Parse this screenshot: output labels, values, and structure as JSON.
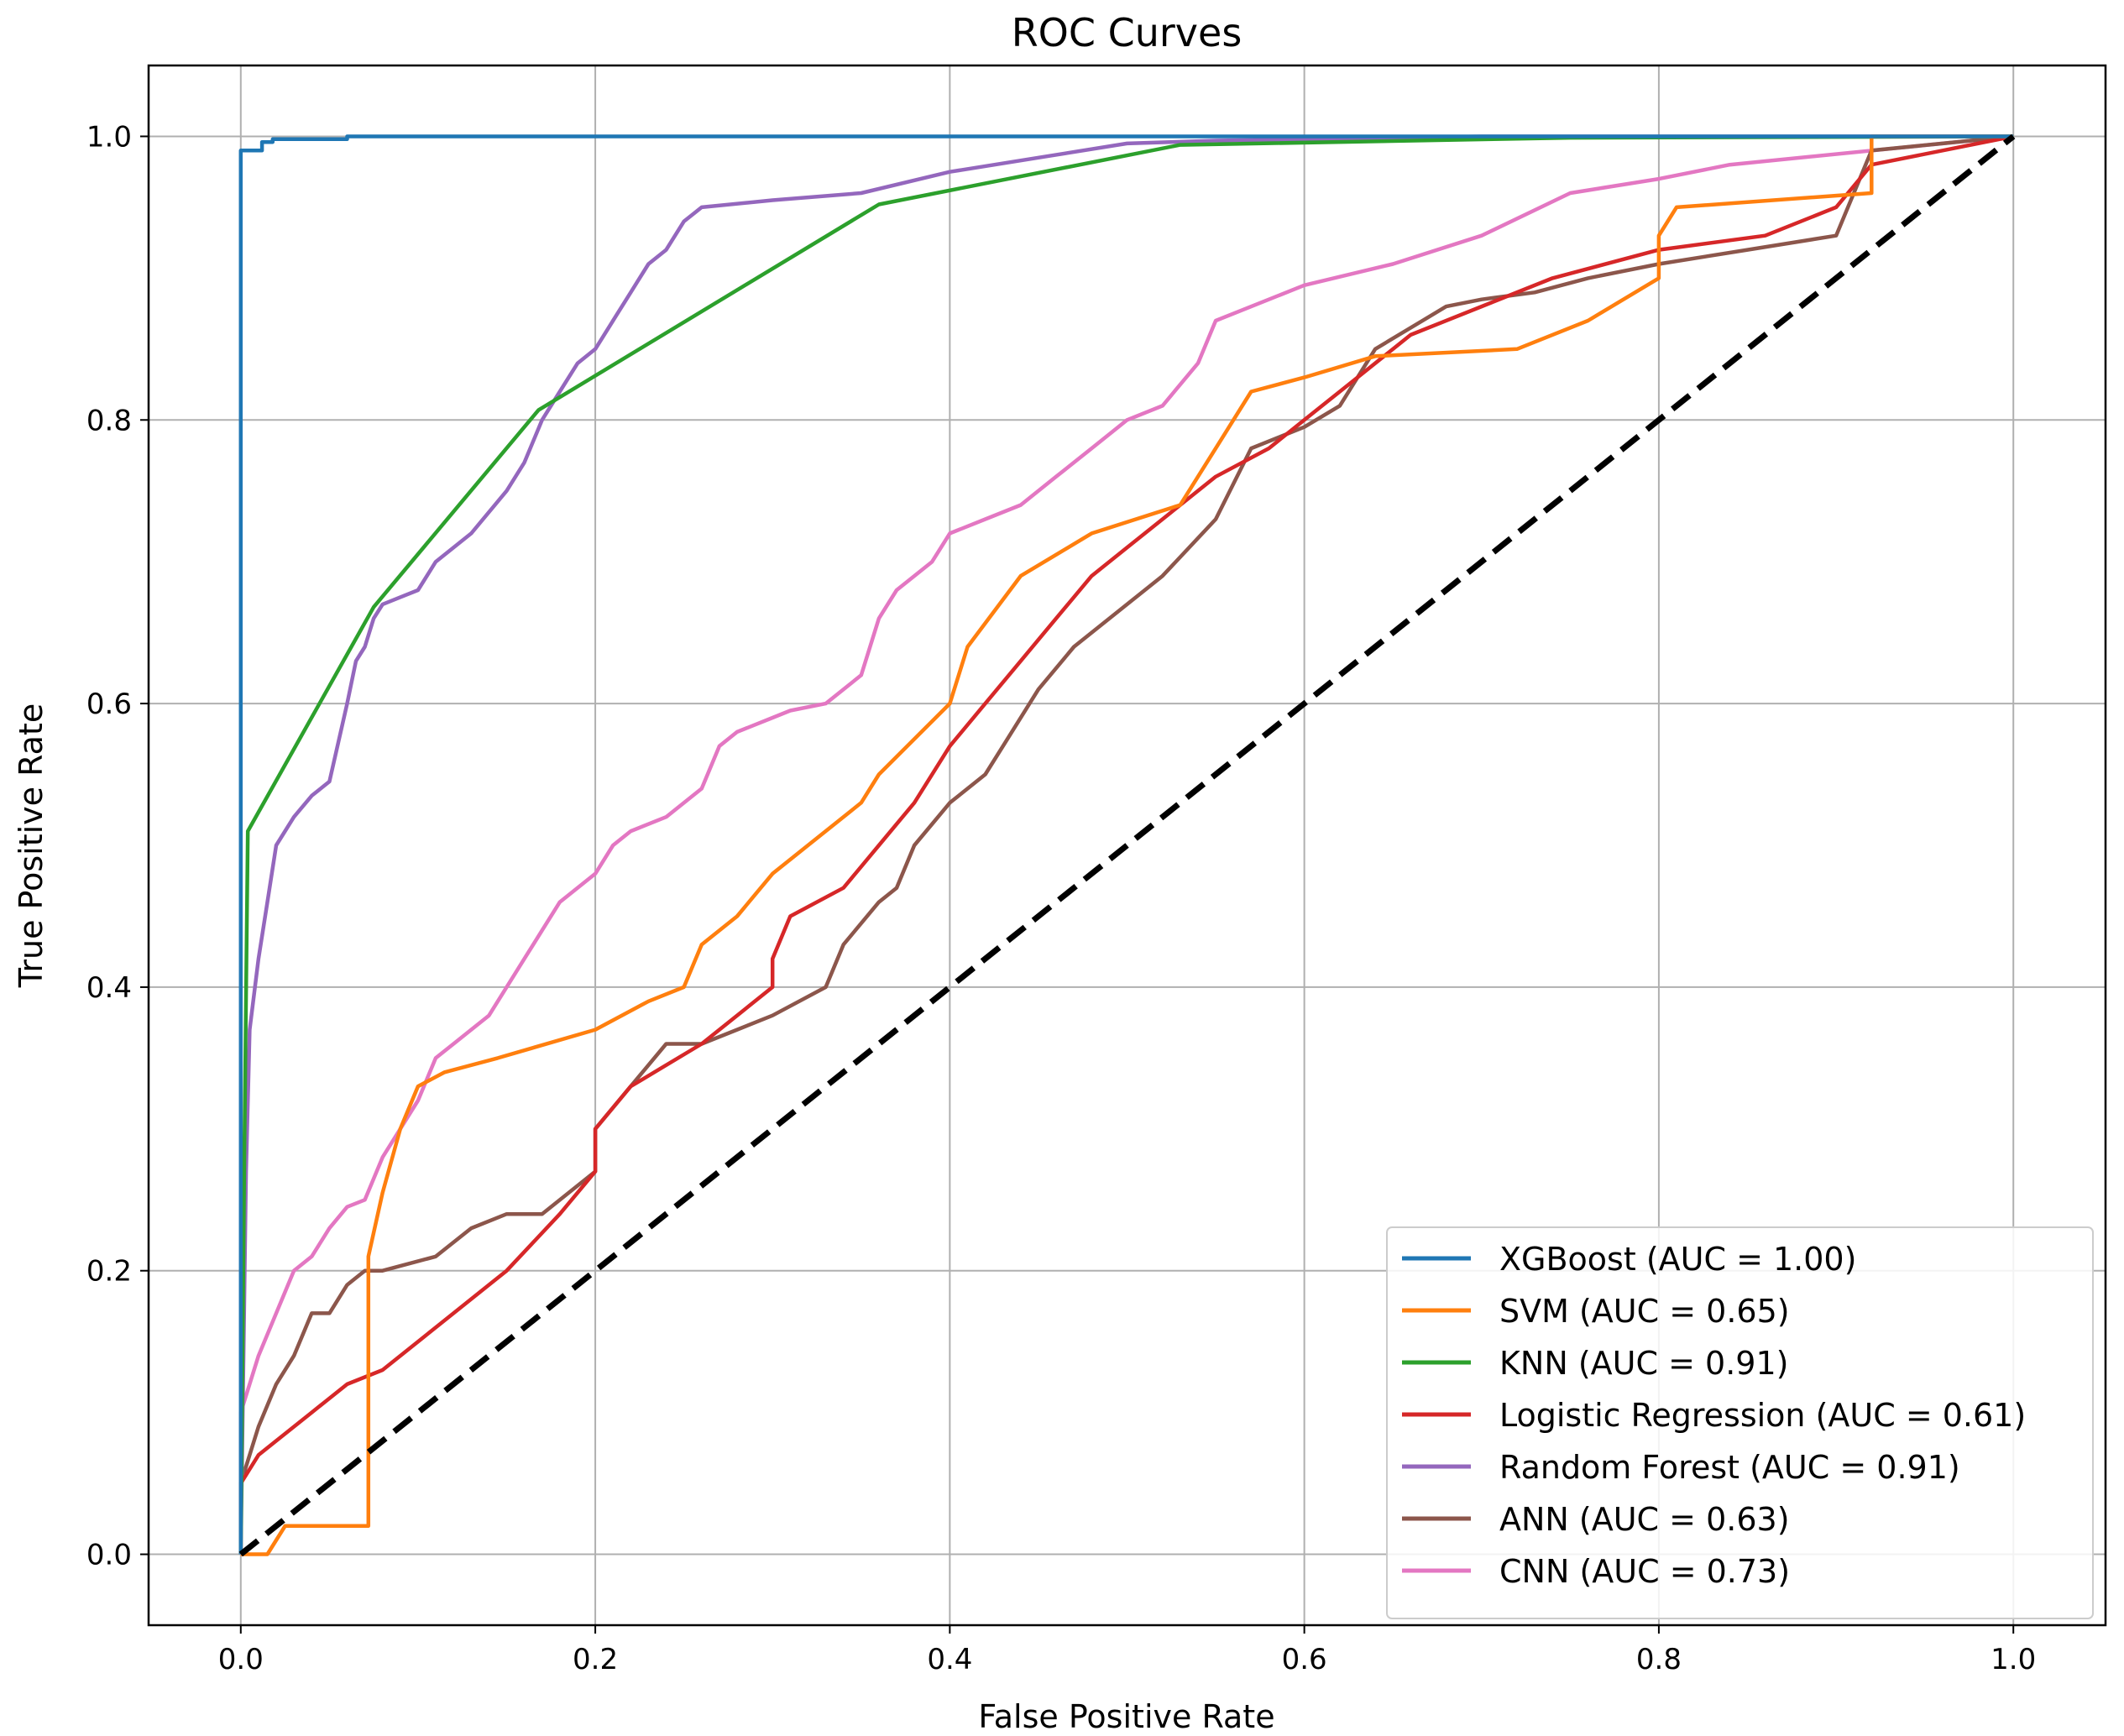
{
  "chart_data": {
    "type": "line",
    "title": "ROC Curves",
    "xlabel": "False Positive Rate",
    "ylabel": "True Positive Rate",
    "xlim": [
      -0.052,
      1.052
    ],
    "ylim": [
      -0.05,
      1.05
    ],
    "xticks": [
      0.0,
      0.2,
      0.4,
      0.6,
      0.8,
      1.0
    ],
    "yticks": [
      0.0,
      0.2,
      0.4,
      0.6,
      0.8,
      1.0
    ],
    "xtick_labels": [
      "0.0",
      "0.2",
      "0.4",
      "0.6",
      "0.8",
      "1.0"
    ],
    "ytick_labels": [
      "0.0",
      "0.2",
      "0.4",
      "0.6",
      "0.8",
      "1.0"
    ],
    "grid": true,
    "legend_position": "lower-right",
    "series": [
      {
        "name": "XGBoost (AUC = 1.00)",
        "color": "#1f77b4",
        "x": [
          0.0,
          0.0,
          0.0,
          0.012,
          0.012,
          0.018,
          0.018,
          0.06,
          0.06,
          1.0
        ],
        "y": [
          0.0,
          0.99,
          0.99,
          0.99,
          0.996,
          0.996,
          0.998,
          0.998,
          1.0,
          1.0
        ]
      },
      {
        "name": "SVM (AUC = 0.65)",
        "color": "#ff7f0e",
        "x": [
          0.0,
          0.015,
          0.025,
          0.072,
          0.072,
          0.08,
          0.09,
          0.1,
          0.115,
          0.145,
          0.2,
          0.23,
          0.25,
          0.26,
          0.28,
          0.3,
          0.32,
          0.35,
          0.36,
          0.4,
          0.41,
          0.44,
          0.48,
          0.53,
          0.55,
          0.57,
          0.6,
          0.64,
          0.72,
          0.76,
          0.8,
          0.8,
          0.81,
          0.92,
          0.92,
          1.0
        ],
        "y": [
          0.0,
          0.0,
          0.02,
          0.02,
          0.21,
          0.255,
          0.3,
          0.33,
          0.34,
          0.35,
          0.37,
          0.39,
          0.4,
          0.43,
          0.45,
          0.48,
          0.5,
          0.53,
          0.55,
          0.6,
          0.64,
          0.69,
          0.72,
          0.74,
          0.78,
          0.82,
          0.83,
          0.845,
          0.85,
          0.87,
          0.9,
          0.93,
          0.95,
          0.96,
          1.0,
          1.0
        ]
      },
      {
        "name": "KNN (AUC = 0.91)",
        "color": "#2ca02c",
        "x": [
          0.0,
          0.002,
          0.004,
          0.075,
          0.168,
          0.36,
          0.53,
          0.75,
          1.0
        ],
        "y": [
          0.0,
          0.28,
          0.51,
          0.668,
          0.807,
          0.952,
          0.994,
          0.999,
          1.0
        ]
      },
      {
        "name": "Logistic Regression (AUC = 0.61)",
        "color": "#d62728",
        "x": [
          0.0,
          0.0,
          0.01,
          0.02,
          0.04,
          0.06,
          0.08,
          0.1,
          0.12,
          0.15,
          0.18,
          0.2,
          0.2,
          0.22,
          0.26,
          0.28,
          0.3,
          0.3,
          0.31,
          0.34,
          0.36,
          0.38,
          0.4,
          0.42,
          0.44,
          0.46,
          0.48,
          0.5,
          0.53,
          0.55,
          0.58,
          0.6,
          0.63,
          0.66,
          0.7,
          0.74,
          0.8,
          0.86,
          0.9,
          0.92,
          1.0
        ],
        "y": [
          0.0,
          0.05,
          0.07,
          0.08,
          0.1,
          0.12,
          0.13,
          0.15,
          0.17,
          0.2,
          0.24,
          0.27,
          0.3,
          0.33,
          0.36,
          0.38,
          0.4,
          0.42,
          0.45,
          0.47,
          0.5,
          0.53,
          0.57,
          0.6,
          0.63,
          0.66,
          0.69,
          0.71,
          0.74,
          0.76,
          0.78,
          0.8,
          0.83,
          0.86,
          0.88,
          0.9,
          0.92,
          0.93,
          0.95,
          0.98,
          1.0
        ]
      },
      {
        "name": "Random Forest (AUC = 0.91)",
        "color": "#9467bd",
        "x": [
          0.0,
          0.003,
          0.005,
          0.01,
          0.015,
          0.02,
          0.03,
          0.04,
          0.05,
          0.06,
          0.065,
          0.07,
          0.075,
          0.08,
          0.09,
          0.1,
          0.11,
          0.13,
          0.15,
          0.16,
          0.17,
          0.18,
          0.19,
          0.2,
          0.21,
          0.22,
          0.23,
          0.24,
          0.25,
          0.26,
          0.3,
          0.35,
          0.4,
          0.45,
          0.5,
          0.55,
          0.6,
          0.7,
          1.0
        ],
        "y": [
          0.0,
          0.27,
          0.37,
          0.42,
          0.46,
          0.5,
          0.52,
          0.535,
          0.545,
          0.6,
          0.63,
          0.64,
          0.66,
          0.67,
          0.675,
          0.68,
          0.7,
          0.72,
          0.75,
          0.77,
          0.8,
          0.82,
          0.84,
          0.85,
          0.87,
          0.89,
          0.91,
          0.92,
          0.94,
          0.95,
          0.955,
          0.96,
          0.975,
          0.985,
          0.995,
          0.997,
          0.998,
          1.0,
          1.0
        ]
      },
      {
        "name": "ANN (AUC = 0.63)",
        "color": "#8c564b",
        "x": [
          0.0,
          0.0,
          0.01,
          0.02,
          0.03,
          0.04,
          0.05,
          0.06,
          0.07,
          0.08,
          0.11,
          0.13,
          0.15,
          0.17,
          0.2,
          0.2,
          0.22,
          0.24,
          0.26,
          0.28,
          0.3,
          0.33,
          0.34,
          0.36,
          0.37,
          0.38,
          0.4,
          0.42,
          0.43,
          0.45,
          0.47,
          0.5,
          0.52,
          0.55,
          0.57,
          0.6,
          0.62,
          0.64,
          0.68,
          0.7,
          0.73,
          0.76,
          0.8,
          0.85,
          0.9,
          0.91,
          0.92,
          1.0
        ],
        "y": [
          0.0,
          0.05,
          0.09,
          0.12,
          0.14,
          0.17,
          0.17,
          0.19,
          0.2,
          0.2,
          0.21,
          0.23,
          0.24,
          0.24,
          0.27,
          0.3,
          0.33,
          0.36,
          0.36,
          0.37,
          0.38,
          0.4,
          0.43,
          0.46,
          0.47,
          0.5,
          0.53,
          0.55,
          0.57,
          0.61,
          0.64,
          0.67,
          0.69,
          0.73,
          0.78,
          0.795,
          0.81,
          0.85,
          0.88,
          0.885,
          0.89,
          0.9,
          0.91,
          0.92,
          0.93,
          0.96,
          0.99,
          1.0
        ]
      },
      {
        "name": "CNN (AUC = 0.73)",
        "color": "#e377c2",
        "x": [
          0.0,
          0.0,
          0.01,
          0.02,
          0.03,
          0.04,
          0.05,
          0.06,
          0.07,
          0.08,
          0.09,
          0.1,
          0.11,
          0.12,
          0.14,
          0.16,
          0.17,
          0.18,
          0.2,
          0.21,
          0.22,
          0.24,
          0.26,
          0.27,
          0.28,
          0.3,
          0.31,
          0.33,
          0.35,
          0.36,
          0.37,
          0.39,
          0.4,
          0.42,
          0.44,
          0.46,
          0.48,
          0.5,
          0.52,
          0.54,
          0.55,
          0.6,
          0.65,
          0.7,
          0.75,
          0.8,
          0.84,
          1.0
        ],
        "y": [
          0.0,
          0.1,
          0.14,
          0.17,
          0.2,
          0.21,
          0.23,
          0.245,
          0.25,
          0.28,
          0.3,
          0.32,
          0.35,
          0.36,
          0.38,
          0.42,
          0.44,
          0.46,
          0.48,
          0.5,
          0.51,
          0.52,
          0.54,
          0.57,
          0.58,
          0.59,
          0.595,
          0.6,
          0.62,
          0.66,
          0.68,
          0.7,
          0.72,
          0.73,
          0.74,
          0.76,
          0.78,
          0.8,
          0.81,
          0.84,
          0.87,
          0.895,
          0.91,
          0.93,
          0.96,
          0.97,
          0.98,
          1.0
        ]
      }
    ],
    "reference_line": {
      "x": [
        0.0,
        1.0
      ],
      "y": [
        0.0,
        1.0
      ],
      "color": "#000000",
      "style": "dashed"
    }
  }
}
